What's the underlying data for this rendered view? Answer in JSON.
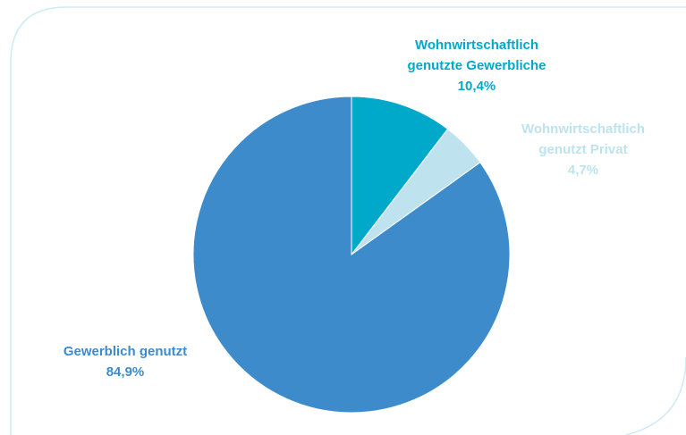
{
  "chart_data": {
    "type": "pie",
    "categories": [
      "Wohnwirtschaftlich genutzte Gewerbliche",
      "Wohnwirtschaftlich genutzt Privat",
      "Gewerblich genutzt"
    ],
    "values": [
      10.4,
      4.7,
      84.9
    ],
    "value_labels": [
      "10,4%",
      "4,7%",
      "84,9%"
    ],
    "colors": [
      "#00a9c9",
      "#bfe3ee",
      "#3d8bcb"
    ]
  }
}
